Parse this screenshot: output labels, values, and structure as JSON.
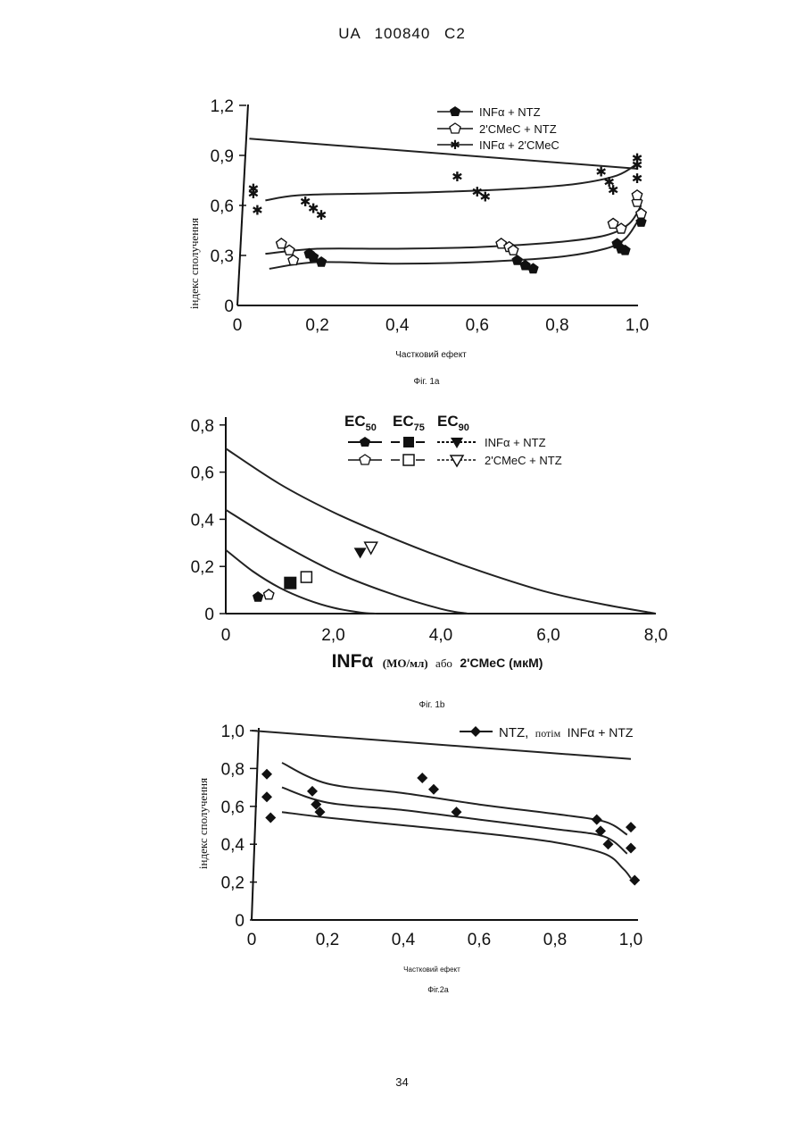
{
  "header": {
    "text": "UA 100840 C2"
  },
  "page_number": "34",
  "chart_data": [
    {
      "id": "fig1a",
      "type": "scatter",
      "caption": "Фіг. 1а",
      "xlabel": "Частковий ефект",
      "ylabel": "індекс сполучення",
      "xlim": [
        0,
        1.0
      ],
      "ylim": [
        0,
        1.2
      ],
      "xticks": [
        "0",
        "0,2",
        "0,4",
        "0,6",
        "0,8",
        "1,0"
      ],
      "yticks": [
        "0",
        "0,3",
        "0,6",
        "0,9",
        "1,2"
      ],
      "grid": false,
      "legend_position": "top-right",
      "reference_line": [
        [
          0.03,
          1.0
        ],
        [
          1.0,
          0.82
        ]
      ],
      "series": [
        {
          "name": "INFα + NTZ",
          "marker": "filled-pentagon",
          "points": [
            [
              0.18,
              0.31
            ],
            [
              0.19,
              0.29
            ],
            [
              0.21,
              0.26
            ],
            [
              0.7,
              0.27
            ],
            [
              0.72,
              0.24
            ],
            [
              0.74,
              0.22
            ],
            [
              0.95,
              0.37
            ],
            [
              0.96,
              0.34
            ],
            [
              0.97,
              0.33
            ],
            [
              1.01,
              0.5
            ]
          ],
          "curve": [
            [
              0.08,
              0.22
            ],
            [
              0.2,
              0.26
            ],
            [
              0.4,
              0.25
            ],
            [
              0.6,
              0.26
            ],
            [
              0.8,
              0.29
            ],
            [
              0.92,
              0.34
            ],
            [
              0.97,
              0.4
            ],
            [
              1.0,
              0.5
            ]
          ]
        },
        {
          "name": "2'CMeC + NTZ",
          "marker": "open-pentagon",
          "points": [
            [
              0.11,
              0.37
            ],
            [
              0.13,
              0.33
            ],
            [
              0.14,
              0.27
            ],
            [
              0.66,
              0.37
            ],
            [
              0.68,
              0.35
            ],
            [
              0.69,
              0.33
            ],
            [
              0.94,
              0.49
            ],
            [
              0.96,
              0.46
            ],
            [
              1.0,
              0.62
            ],
            [
              1.01,
              0.55
            ],
            [
              1.0,
              0.66
            ]
          ],
          "curve": [
            [
              0.07,
              0.31
            ],
            [
              0.2,
              0.34
            ],
            [
              0.4,
              0.34
            ],
            [
              0.6,
              0.35
            ],
            [
              0.8,
              0.38
            ],
            [
              0.92,
              0.42
            ],
            [
              0.98,
              0.49
            ],
            [
              1.01,
              0.6
            ]
          ]
        },
        {
          "name": "INFα + 2'CMeC",
          "marker": "star",
          "points": [
            [
              0.04,
              0.7
            ],
            [
              0.04,
              0.67
            ],
            [
              0.05,
              0.57
            ],
            [
              0.17,
              0.62
            ],
            [
              0.19,
              0.58
            ],
            [
              0.21,
              0.54
            ],
            [
              0.55,
              0.77
            ],
            [
              0.6,
              0.68
            ],
            [
              0.62,
              0.65
            ],
            [
              0.91,
              0.8
            ],
            [
              0.93,
              0.74
            ],
            [
              0.94,
              0.69
            ],
            [
              1.0,
              0.88
            ],
            [
              1.0,
              0.84
            ],
            [
              1.0,
              0.76
            ]
          ],
          "curve": [
            [
              0.07,
              0.63
            ],
            [
              0.15,
              0.66
            ],
            [
              0.3,
              0.67
            ],
            [
              0.5,
              0.68
            ],
            [
              0.7,
              0.7
            ],
            [
              0.85,
              0.73
            ],
            [
              0.95,
              0.78
            ],
            [
              1.0,
              0.85
            ]
          ]
        }
      ]
    },
    {
      "id": "fig1b",
      "type": "scatter",
      "caption": "Фіг. 1b",
      "xlabel_main": "INFα",
      "xlabel_units": "(МО/мл)",
      "xlabel_joiner": "або",
      "xlabel_second": "2'CMeC (мкМ)",
      "xlim": [
        0,
        8.0
      ],
      "ylim": [
        0,
        0.8
      ],
      "xticks": [
        "0",
        "2,0",
        "4,0",
        "6,0",
        "8,0"
      ],
      "yticks": [
        "0",
        "0,2",
        "0,4",
        "0,6",
        "0,8"
      ],
      "grid": false,
      "legend_position": "top-right",
      "legend_header": [
        "EC",
        "EC",
        "EC"
      ],
      "legend_header_sub": [
        "50",
        "75",
        "90"
      ],
      "isoboles": [
        {
          "level": "EC50",
          "points": [
            [
              0,
              0.27
            ],
            [
              0.5,
              0.18
            ],
            [
              1.0,
              0.11
            ],
            [
              1.5,
              0.06
            ],
            [
              2.0,
              0.025
            ],
            [
              2.5,
              0.005
            ],
            [
              2.8,
              0
            ]
          ]
        },
        {
          "level": "EC75",
          "points": [
            [
              0,
              0.44
            ],
            [
              1.0,
              0.3
            ],
            [
              2.0,
              0.18
            ],
            [
              3.0,
              0.09
            ],
            [
              4.0,
              0.02
            ],
            [
              4.5,
              0
            ]
          ]
        },
        {
          "level": "EC90",
          "points": [
            [
              0,
              0.7
            ],
            [
              1.0,
              0.55
            ],
            [
              2.0,
              0.43
            ],
            [
              3.0,
              0.33
            ],
            [
              4.0,
              0.24
            ],
            [
              5.0,
              0.16
            ],
            [
              6.0,
              0.09
            ],
            [
              7.0,
              0.04
            ],
            [
              8.0,
              0
            ]
          ]
        }
      ],
      "series": [
        {
          "name": "INFα + NTZ",
          "points": [
            {
              "level": "EC50",
              "x": 0.6,
              "y": 0.07
            },
            {
              "level": "EC75",
              "x": 1.2,
              "y": 0.13
            },
            {
              "level": "EC90",
              "x": 2.5,
              "y": 0.26
            }
          ]
        },
        {
          "name": "2'CMeC + NTZ",
          "points": [
            {
              "level": "EC50",
              "x": 0.8,
              "y": 0.08
            },
            {
              "level": "EC75",
              "x": 1.5,
              "y": 0.155
            },
            {
              "level": "EC90",
              "x": 2.7,
              "y": 0.28
            }
          ]
        }
      ]
    },
    {
      "id": "fig2a",
      "type": "scatter",
      "caption": "Фіг.2а",
      "xlabel": "Частковий ефект",
      "ylabel": "індекс сполучення",
      "xlim": [
        0,
        1.0
      ],
      "ylim": [
        0,
        1.0
      ],
      "xticks": [
        "0",
        "0,2",
        "0,4",
        "0,6",
        "0,8",
        "1,0"
      ],
      "yticks": [
        "0",
        "0,2",
        "0,4",
        "0,6",
        "0,8",
        "1,0"
      ],
      "grid": false,
      "legend_position": "top-right",
      "legend_text_a": "NTZ,",
      "legend_text_b": "потім",
      "legend_text_c": "INFα + NTZ",
      "reference_line": [
        [
          0,
          1.0
        ],
        [
          1.0,
          0.85
        ]
      ],
      "series": [
        {
          "name": "NTZ, потім INFα + NTZ",
          "marker": "filled-diamond",
          "points": [
            [
              0.04,
              0.77
            ],
            [
              0.04,
              0.65
            ],
            [
              0.05,
              0.54
            ],
            [
              0.16,
              0.68
            ],
            [
              0.17,
              0.61
            ],
            [
              0.18,
              0.57
            ],
            [
              0.45,
              0.75
            ],
            [
              0.48,
              0.69
            ],
            [
              0.54,
              0.57
            ],
            [
              0.91,
              0.53
            ],
            [
              0.92,
              0.47
            ],
            [
              0.94,
              0.4
            ],
            [
              1.0,
              0.49
            ],
            [
              1.0,
              0.38
            ],
            [
              1.01,
              0.21
            ]
          ],
          "curves": [
            [
              [
                0.08,
                0.83
              ],
              [
                0.2,
                0.72
              ],
              [
                0.4,
                0.67
              ],
              [
                0.6,
                0.61
              ],
              [
                0.8,
                0.56
              ],
              [
                0.93,
                0.52
              ],
              [
                0.99,
                0.45
              ]
            ],
            [
              [
                0.08,
                0.7
              ],
              [
                0.2,
                0.62
              ],
              [
                0.4,
                0.58
              ],
              [
                0.6,
                0.53
              ],
              [
                0.8,
                0.48
              ],
              [
                0.93,
                0.44
              ],
              [
                0.99,
                0.35
              ]
            ],
            [
              [
                0.08,
                0.57
              ],
              [
                0.2,
                0.54
              ],
              [
                0.4,
                0.5
              ],
              [
                0.6,
                0.46
              ],
              [
                0.8,
                0.41
              ],
              [
                0.93,
                0.35
              ],
              [
                0.98,
                0.27
              ],
              [
                1.0,
                0.22
              ]
            ]
          ]
        }
      ]
    }
  ]
}
